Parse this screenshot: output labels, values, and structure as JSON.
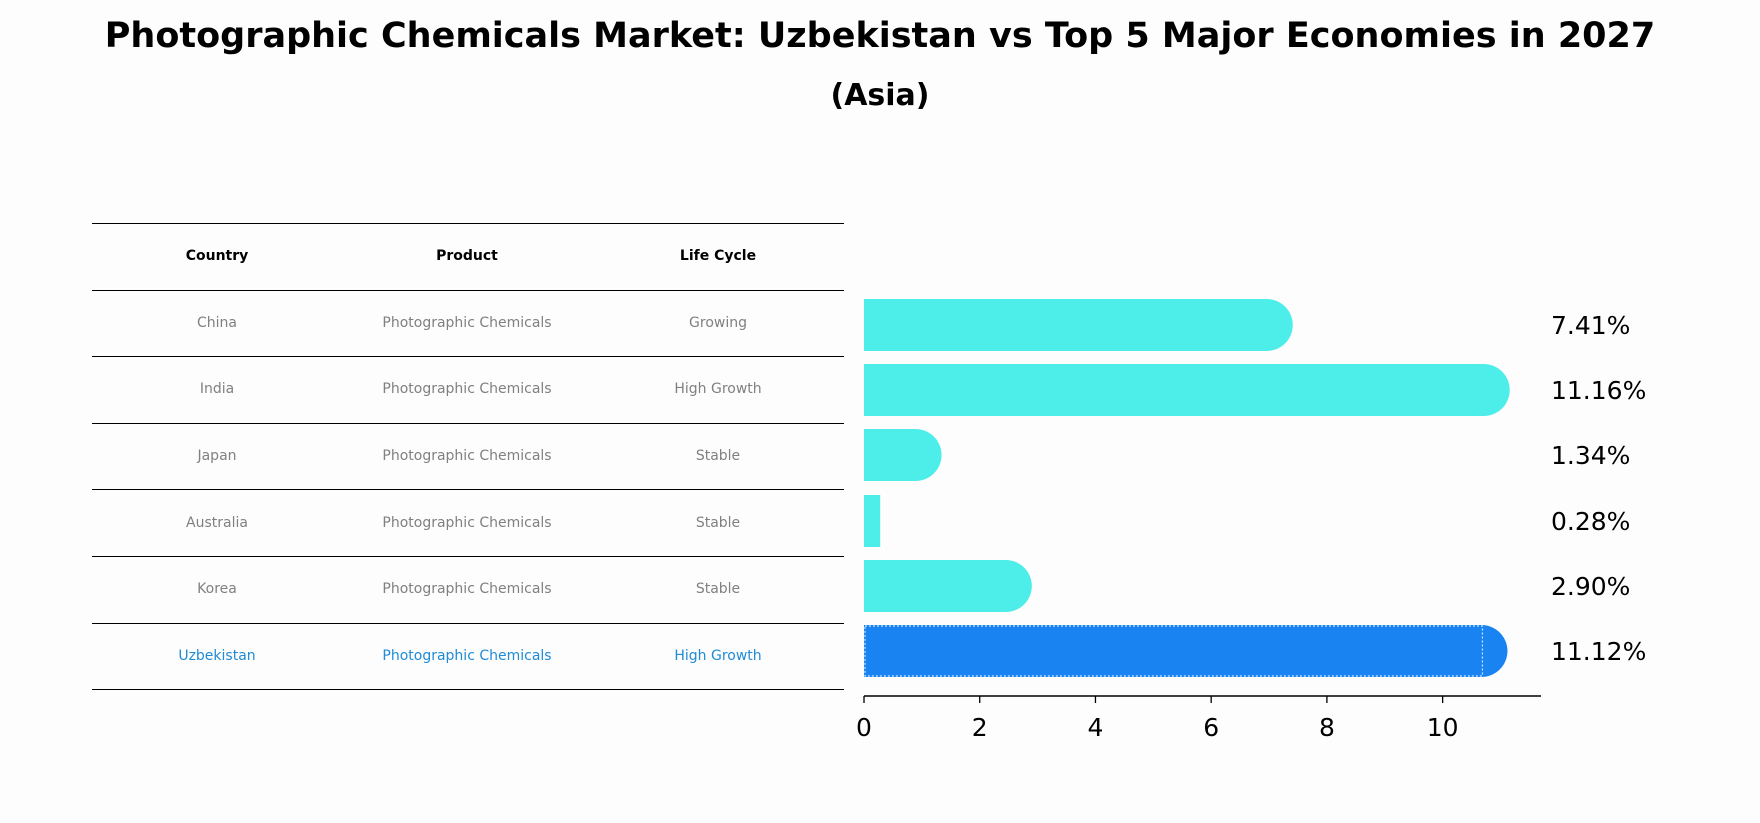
{
  "title": "Photographic Chemicals Market: Uzbekistan vs Top 5 Major Economies in 2027",
  "subtitle": "(Asia)",
  "table": {
    "headers": [
      "Country",
      "Product",
      "Life Cycle"
    ],
    "rows": [
      {
        "country": "China",
        "product": "Photographic Chemicals",
        "life_cycle": "Growing",
        "highlight": false
      },
      {
        "country": "India",
        "product": "Photographic Chemicals",
        "life_cycle": "High Growth",
        "highlight": false
      },
      {
        "country": "Japan",
        "product": "Photographic Chemicals",
        "life_cycle": "Stable",
        "highlight": false
      },
      {
        "country": "Australia",
        "product": "Photographic Chemicals",
        "life_cycle": "Stable",
        "highlight": false
      },
      {
        "country": "Korea",
        "product": "Photographic Chemicals",
        "life_cycle": "Stable",
        "highlight": false
      },
      {
        "country": "Uzbekistan",
        "product": "Photographic Chemicals",
        "life_cycle": "High Growth",
        "highlight": true
      }
    ]
  },
  "colors": {
    "bar": "#4deeea",
    "highlight_bar": "#1984f1",
    "highlight_text": "#1f8bd6",
    "muted_text": "#808080"
  },
  "chart_data": {
    "type": "bar",
    "orientation": "horizontal",
    "categories": [
      "China",
      "India",
      "Japan",
      "Australia",
      "Korea",
      "Uzbekistan"
    ],
    "values": [
      7.41,
      11.16,
      1.34,
      0.28,
      2.9,
      11.12
    ],
    "value_labels": [
      "7.41%",
      "11.16%",
      "1.34%",
      "0.28%",
      "2.90%",
      "11.12%"
    ],
    "highlight_index": 5,
    "xlim": [
      0,
      11.7
    ],
    "xticks": [
      0,
      2,
      4,
      6,
      8,
      10
    ],
    "xtick_labels": [
      "0",
      "2",
      "4",
      "6",
      "8",
      "10"
    ],
    "xlabel": "",
    "ylabel": "",
    "title": "Photographic Chemicals Market: Uzbekistan vs Top 5 Major Economies in 2027"
  }
}
